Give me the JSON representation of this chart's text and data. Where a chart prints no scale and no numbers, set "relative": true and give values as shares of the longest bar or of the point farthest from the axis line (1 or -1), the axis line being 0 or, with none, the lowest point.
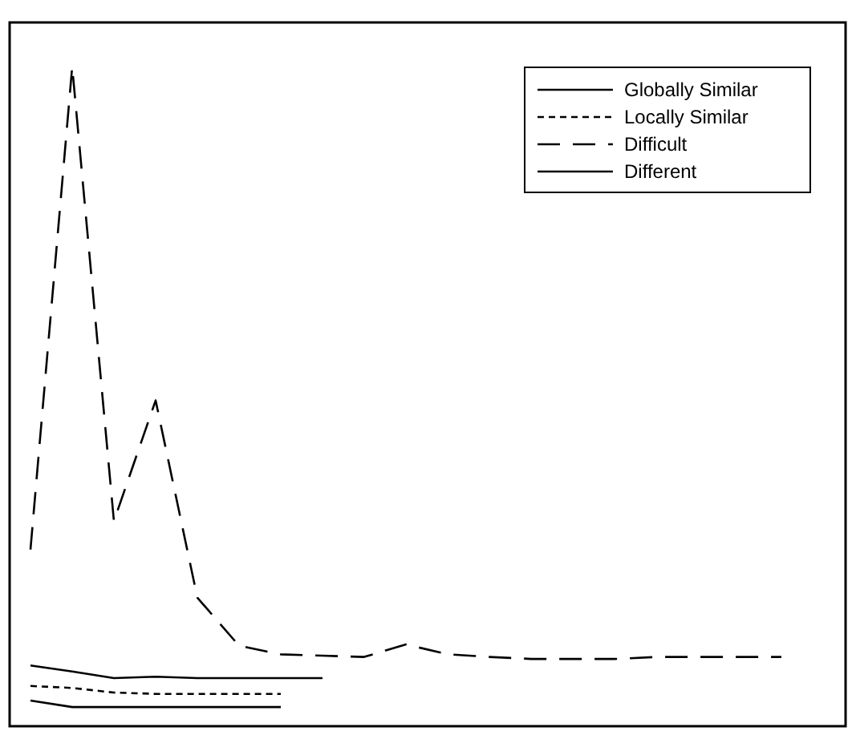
{
  "chart_data": {
    "type": "line",
    "relative": true,
    "categories": [
      null,
      null,
      null,
      null,
      null,
      null,
      null,
      null,
      null,
      null,
      null,
      null,
      null,
      null,
      null,
      null,
      null,
      null,
      null
    ],
    "legend": "top right",
    "series": [
      {
        "name": "Globally Similar",
        "color": "#000000",
        "line_style": "solid",
        "values": [
          0.039,
          0.029,
          0.029,
          0.029,
          0.029,
          0.029,
          0.029,
          null,
          null,
          null,
          null,
          null,
          null,
          null,
          null,
          null,
          null,
          null,
          null
        ]
      },
      {
        "name": "Locally Similar",
        "color": "#000000",
        "line_style": "dotted",
        "values": [
          0.061,
          0.058,
          0.051,
          0.049,
          0.049,
          0.049,
          0.049,
          null,
          null,
          null,
          null,
          null,
          null,
          null,
          null,
          null,
          null,
          null,
          null
        ]
      },
      {
        "name": "Difficult",
        "color": "#000000",
        "line_style": "dashed",
        "values": [
          0.268,
          1,
          0.311,
          0.494,
          0.195,
          0.122,
          0.109,
          0.107,
          0.105,
          0.124,
          0.109,
          0.105,
          0.102,
          0.102,
          0.102,
          0.105,
          0.105,
          0.105,
          0.105
        ]
      },
      {
        "name": "Different",
        "color": "#000000",
        "line_style": "solid",
        "values": [
          0.092,
          0.083,
          0.073,
          0.075,
          0.073,
          0.073,
          0.073,
          0.073,
          null,
          null,
          null,
          null,
          null,
          null,
          null,
          null,
          null,
          null,
          null
        ]
      }
    ]
  }
}
